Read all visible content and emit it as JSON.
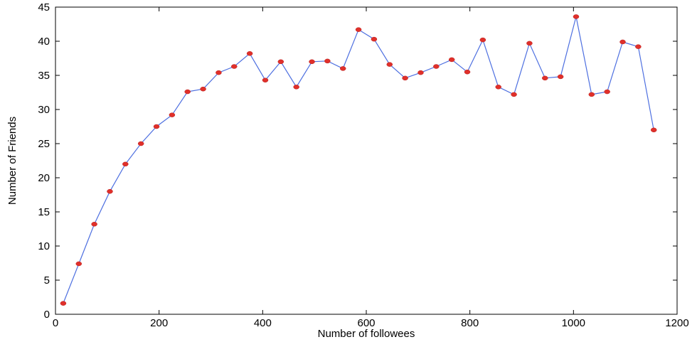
{
  "chart_data": {
    "type": "line",
    "title": "",
    "xlabel": "Number of followees",
    "ylabel": "Number of Friends",
    "xlim": [
      0,
      1200
    ],
    "ylim": [
      0,
      45
    ],
    "xticks": [
      0,
      200,
      400,
      600,
      800,
      1000,
      1200
    ],
    "yticks": [
      0,
      5,
      10,
      15,
      20,
      25,
      30,
      35,
      40,
      45
    ],
    "grid": false,
    "legend": "none",
    "colors": {
      "line": "#4d6fe0",
      "marker": "#e0302a"
    },
    "series": [
      {
        "x": [
          15,
          45,
          75,
          105,
          135,
          165,
          195,
          225,
          255,
          285,
          315,
          345,
          375,
          405,
          435,
          465,
          495,
          525,
          555,
          585,
          615,
          645,
          675,
          705,
          735,
          765,
          795,
          825,
          855,
          885,
          915,
          945,
          975,
          1005,
          1035,
          1065,
          1095,
          1125,
          1155
        ],
        "y": [
          1.6,
          7.4,
          13.2,
          18.0,
          22.0,
          25.0,
          27.5,
          29.2,
          32.6,
          33.0,
          35.4,
          36.3,
          38.2,
          34.3,
          37.0,
          33.3,
          37.0,
          37.1,
          36.0,
          41.7,
          40.3,
          36.6,
          34.6,
          35.4,
          36.3,
          37.3,
          35.5,
          40.2,
          33.3,
          32.2,
          39.7,
          34.6,
          34.8,
          43.6,
          32.2,
          32.6,
          39.9,
          39.2,
          27.0
        ]
      }
    ]
  }
}
